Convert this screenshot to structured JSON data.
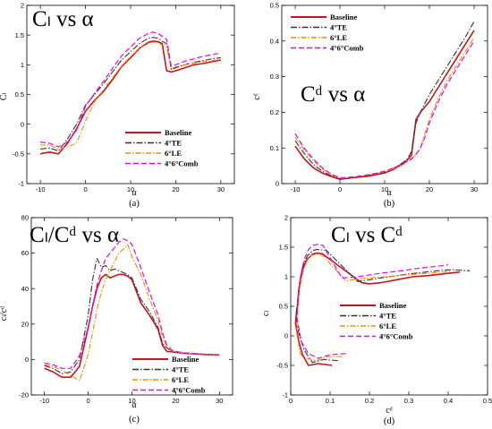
{
  "series_styles": [
    {
      "name": "Baseline",
      "color": "#c8141e",
      "dash": "",
      "width": 1.6
    },
    {
      "name": "4°TE",
      "color": "#333333",
      "dash": "7,2,1.5,2",
      "width": 1.1
    },
    {
      "name": "6°LE",
      "color": "#ff8800",
      "dash": "6,2,1.5,2",
      "width": 1.1
    },
    {
      "name": "4°6°Comb",
      "color": "#ee00ee",
      "dash": "6,3",
      "width": 1.2
    }
  ],
  "chart_data": [
    {
      "type": "line",
      "title": "Cₗ vs α",
      "xlabel": "α",
      "ylabel": "Cₗ",
      "caption": "(a)",
      "xlim": [
        -13,
        33
      ],
      "ylim": [
        -1,
        2
      ],
      "xticks": [
        -10,
        0,
        10,
        20,
        30
      ],
      "yticks": [
        -1,
        -0.5,
        0,
        0.5,
        1,
        1.5,
        2
      ],
      "xtick_labels": [
        "-10",
        "0",
        "10",
        "20",
        "30"
      ],
      "ytick_labels": [
        "-1",
        "-0.5",
        "0",
        "0.5",
        "1",
        "1.5",
        "2"
      ],
      "legend_position": "lower-right",
      "series": [
        {
          "name": "Baseline",
          "x": [
            -10,
            -8,
            -6,
            -4,
            -2,
            0,
            2,
            4,
            6,
            8,
            10,
            12,
            14,
            15,
            16,
            17,
            18,
            19,
            20,
            22,
            24,
            26,
            28,
            30
          ],
          "y": [
            -0.5,
            -0.47,
            -0.5,
            -0.32,
            -0.08,
            0.22,
            0.4,
            0.55,
            0.75,
            0.97,
            1.12,
            1.28,
            1.38,
            1.4,
            1.39,
            1.36,
            0.9,
            0.88,
            0.9,
            0.95,
            1.0,
            1.02,
            1.05,
            1.08
          ]
        },
        {
          "name": "4°TE",
          "x": [
            -10,
            -8,
            -6,
            -4,
            -2,
            0,
            2,
            4,
            6,
            8,
            10,
            12,
            14,
            15,
            16,
            17,
            18,
            19,
            20,
            22,
            24,
            26,
            28,
            30
          ],
          "y": [
            -0.42,
            -0.4,
            -0.45,
            -0.25,
            0.0,
            0.32,
            0.5,
            0.68,
            0.88,
            1.08,
            1.22,
            1.36,
            1.45,
            1.46,
            1.45,
            1.4,
            1.35,
            0.92,
            0.95,
            1.0,
            1.04,
            1.07,
            1.1,
            1.12
          ]
        },
        {
          "name": "6°LE",
          "x": [
            -10,
            -8,
            -6,
            -4,
            -2,
            0,
            2,
            4,
            6,
            8,
            10,
            12,
            14,
            15,
            16,
            17,
            18,
            19,
            20,
            22,
            24,
            26,
            28,
            30
          ],
          "y": [
            -0.35,
            -0.35,
            -0.42,
            -0.38,
            -0.32,
            0.05,
            0.38,
            0.58,
            0.78,
            0.98,
            1.14,
            1.28,
            1.36,
            1.38,
            1.37,
            1.33,
            1.3,
            0.93,
            0.97,
            1.0,
            1.03,
            1.05,
            1.07,
            1.09
          ]
        },
        {
          "name": "4°6°Comb",
          "x": [
            -10,
            -8,
            -6,
            -4,
            -2,
            0,
            2,
            4,
            6,
            8,
            10,
            12,
            14,
            15,
            16,
            17,
            18,
            19,
            20,
            22,
            24,
            26,
            28,
            30
          ],
          "y": [
            -0.3,
            -0.32,
            -0.38,
            -0.3,
            -0.1,
            0.3,
            0.52,
            0.72,
            0.94,
            1.15,
            1.3,
            1.45,
            1.53,
            1.55,
            1.53,
            1.48,
            1.43,
            0.98,
            1.0,
            1.06,
            1.1,
            1.14,
            1.17,
            1.2
          ]
        }
      ]
    },
    {
      "type": "line",
      "title": "Cᵈ vs α",
      "xlabel": "α",
      "ylabel": "cᵈ",
      "caption": "(b)",
      "xlim": [
        -13,
        33
      ],
      "ylim": [
        0,
        0.5
      ],
      "xticks": [
        -10,
        0,
        10,
        20,
        30
      ],
      "yticks": [
        0,
        0.1,
        0.2,
        0.3,
        0.4,
        0.5
      ],
      "xtick_labels": [
        "-10",
        "0",
        "10",
        "20",
        "30"
      ],
      "ytick_labels": [
        "0",
        "0.1",
        "0.2",
        "0.3",
        "0.4",
        "0.5"
      ],
      "legend_position": "top-left",
      "series": [
        {
          "name": "Baseline",
          "x": [
            -10,
            -8,
            -6,
            -4,
            -2,
            0,
            2,
            4,
            6,
            8,
            10,
            12,
            14,
            15,
            16,
            17,
            18,
            20,
            22,
            24,
            26,
            28,
            30
          ],
          "y": [
            0.105,
            0.07,
            0.045,
            0.03,
            0.02,
            0.012,
            0.015,
            0.018,
            0.02,
            0.025,
            0.03,
            0.04,
            0.055,
            0.065,
            0.08,
            0.18,
            0.2,
            0.23,
            0.27,
            0.31,
            0.35,
            0.39,
            0.43
          ]
        },
        {
          "name": "4°TE",
          "x": [
            -10,
            -8,
            -6,
            -4,
            -2,
            0,
            2,
            4,
            6,
            8,
            10,
            12,
            14,
            15,
            16,
            17,
            18,
            20,
            22,
            24,
            26,
            28,
            30
          ],
          "y": [
            0.12,
            0.085,
            0.055,
            0.035,
            0.022,
            0.013,
            0.016,
            0.019,
            0.022,
            0.027,
            0.033,
            0.043,
            0.058,
            0.068,
            0.09,
            0.17,
            0.2,
            0.25,
            0.29,
            0.33,
            0.37,
            0.41,
            0.455
          ]
        },
        {
          "name": "6°LE",
          "x": [
            -10,
            -8,
            -6,
            -4,
            -2,
            0,
            2,
            4,
            6,
            8,
            10,
            12,
            14,
            16,
            17,
            18,
            19,
            20,
            22,
            24,
            26,
            28,
            30
          ],
          "y": [
            0.13,
            0.095,
            0.065,
            0.042,
            0.025,
            0.015,
            0.017,
            0.02,
            0.023,
            0.028,
            0.034,
            0.042,
            0.052,
            0.068,
            0.08,
            0.1,
            0.14,
            0.18,
            0.24,
            0.29,
            0.33,
            0.37,
            0.41
          ]
        },
        {
          "name": "4°6°Comb",
          "x": [
            -10,
            -8,
            -6,
            -4,
            -2,
            0,
            2,
            4,
            6,
            8,
            10,
            12,
            14,
            16,
            17,
            18,
            19,
            20,
            22,
            24,
            26,
            28,
            30
          ],
          "y": [
            0.14,
            0.1,
            0.07,
            0.045,
            0.027,
            0.016,
            0.018,
            0.02,
            0.024,
            0.029,
            0.035,
            0.044,
            0.055,
            0.07,
            0.082,
            0.1,
            0.13,
            0.17,
            0.23,
            0.28,
            0.32,
            0.36,
            0.4
          ]
        }
      ]
    },
    {
      "type": "line",
      "title": "Cₗ/Cᵈ vs α",
      "xlabel": "α",
      "ylabel": "cₗ/cᵈ",
      "caption": "(c)",
      "xlim": [
        -13,
        33
      ],
      "ylim": [
        -20,
        80
      ],
      "xticks": [
        -10,
        0,
        10,
        20,
        30
      ],
      "yticks": [
        -20,
        0,
        20,
        40,
        60,
        80
      ],
      "xtick_labels": [
        "-10",
        "0",
        "10",
        "20",
        "30"
      ],
      "ytick_labels": [
        "-20",
        "0",
        "20",
        "40",
        "60",
        "80"
      ],
      "legend_position": "lower-right",
      "series": [
        {
          "name": "Baseline",
          "x": [
            -10,
            -8,
            -6,
            -4,
            -2,
            0,
            1,
            2,
            3,
            4,
            5,
            6,
            7,
            8,
            9,
            10,
            12,
            14,
            16,
            17,
            18,
            19,
            20,
            22,
            24,
            26,
            28,
            30
          ],
          "y": [
            -5,
            -7,
            -10,
            -10,
            -4,
            18,
            30,
            40,
            46,
            48,
            46,
            47,
            48,
            48,
            47,
            45,
            32,
            25,
            17,
            8,
            4.5,
            4.4,
            4,
            3.5,
            3.2,
            2.9,
            2.7,
            2.5
          ]
        },
        {
          "name": "4°TE",
          "x": [
            -10,
            -8,
            -6,
            -4,
            -2,
            0,
            1,
            2,
            3,
            4,
            5,
            6,
            7,
            8,
            9,
            10,
            12,
            14,
            16,
            17,
            18,
            19,
            20,
            22,
            24,
            26,
            28,
            30
          ],
          "y": [
            -3.5,
            -5,
            -8,
            -7,
            0,
            25,
            45,
            57,
            52,
            53,
            50,
            51,
            50,
            49,
            48,
            46,
            34,
            27,
            18,
            9,
            6.5,
            4.6,
            4.1,
            3.6,
            3.3,
            3,
            2.8,
            2.6
          ]
        },
        {
          "name": "6°LE",
          "x": [
            -10,
            -8,
            -6,
            -4,
            -2,
            0,
            1,
            2,
            3,
            4,
            5,
            6,
            7,
            8,
            9,
            10,
            12,
            14,
            16,
            17,
            18,
            19,
            20,
            22,
            24,
            26,
            28,
            30
          ],
          "y": [
            -3,
            -4,
            -6,
            -9,
            -12,
            3,
            15,
            28,
            38,
            45,
            50,
            55,
            60,
            62,
            65,
            58,
            48,
            34,
            22,
            13,
            7,
            5,
            4.3,
            3.7,
            3.3,
            3,
            2.8,
            2.6
          ]
        },
        {
          "name": "4°6°Comb",
          "x": [
            -10,
            -8,
            -6,
            -4,
            -2,
            0,
            1,
            2,
            3,
            4,
            5,
            6,
            7,
            8,
            9,
            10,
            12,
            14,
            16,
            17,
            18,
            19,
            20,
            22,
            24,
            26,
            28,
            30
          ],
          "y": [
            -2,
            -3,
            -5,
            -5,
            2,
            18,
            30,
            42,
            50,
            57,
            60,
            63,
            66,
            68,
            67,
            65,
            52,
            38,
            25,
            15,
            8,
            5.5,
            4.5,
            3.8,
            3.4,
            3.1,
            2.9,
            2.7
          ]
        }
      ]
    },
    {
      "type": "line",
      "title": "Cₗ vs Cᵈ",
      "xlabel": "cᵈ",
      "ylabel": "cₗ",
      "caption": "(d)",
      "xlim": [
        0,
        0.5
      ],
      "ylim": [
        -1,
        2
      ],
      "xticks": [
        0,
        0.1,
        0.2,
        0.3,
        0.4,
        0.5
      ],
      "yticks": [
        -1,
        -0.5,
        0,
        0.5,
        1,
        1.5,
        2
      ],
      "xtick_labels": [
        "0",
        "0.1",
        "0.2",
        "0.3",
        "0.4",
        "0.5"
      ],
      "ytick_labels": [
        "-1",
        "-0.5",
        "0",
        "0.5",
        "1",
        "1.5",
        "2"
      ],
      "legend_position": "lower-right",
      "series": [
        {
          "name": "Baseline",
          "x": [
            0.105,
            0.07,
            0.045,
            0.03,
            0.02,
            0.012,
            0.015,
            0.018,
            0.02,
            0.025,
            0.03,
            0.04,
            0.055,
            0.065,
            0.08,
            0.18,
            0.2,
            0.23,
            0.27,
            0.31,
            0.35,
            0.39,
            0.43
          ],
          "y": [
            -0.5,
            -0.47,
            -0.5,
            -0.32,
            -0.08,
            0.22,
            0.4,
            0.55,
            0.75,
            0.97,
            1.12,
            1.28,
            1.38,
            1.4,
            1.39,
            0.9,
            0.88,
            0.9,
            0.95,
            1.0,
            1.02,
            1.05,
            1.08
          ]
        },
        {
          "name": "4°TE",
          "x": [
            0.12,
            0.085,
            0.055,
            0.035,
            0.022,
            0.013,
            0.016,
            0.019,
            0.022,
            0.027,
            0.033,
            0.043,
            0.058,
            0.068,
            0.09,
            0.17,
            0.2,
            0.25,
            0.29,
            0.33,
            0.37,
            0.41,
            0.455
          ],
          "y": [
            -0.42,
            -0.4,
            -0.45,
            -0.25,
            0.0,
            0.32,
            0.5,
            0.68,
            0.88,
            1.08,
            1.22,
            1.36,
            1.45,
            1.46,
            1.45,
            0.92,
            0.95,
            1.0,
            1.04,
            1.07,
            1.1,
            1.12,
            1.1
          ]
        },
        {
          "name": "6°LE",
          "x": [
            0.13,
            0.095,
            0.065,
            0.042,
            0.025,
            0.015,
            0.017,
            0.02,
            0.023,
            0.028,
            0.034,
            0.042,
            0.052,
            0.068,
            0.08,
            0.14,
            0.18,
            0.24,
            0.29,
            0.33,
            0.37,
            0.41
          ],
          "y": [
            -0.35,
            -0.35,
            -0.42,
            -0.38,
            -0.32,
            0.05,
            0.38,
            0.58,
            0.78,
            0.98,
            1.14,
            1.28,
            1.36,
            1.38,
            1.37,
            0.93,
            0.97,
            1.0,
            1.03,
            1.05,
            1.07,
            1.09
          ]
        },
        {
          "name": "4°6°Comb",
          "x": [
            0.14,
            0.1,
            0.07,
            0.045,
            0.027,
            0.016,
            0.018,
            0.02,
            0.024,
            0.029,
            0.035,
            0.044,
            0.055,
            0.07,
            0.082,
            0.13,
            0.17,
            0.23,
            0.28,
            0.32,
            0.36,
            0.4
          ],
          "y": [
            -0.3,
            -0.32,
            -0.38,
            -0.3,
            -0.1,
            0.3,
            0.52,
            0.72,
            0.94,
            1.15,
            1.3,
            1.45,
            1.53,
            1.55,
            1.53,
            0.98,
            1.0,
            1.06,
            1.1,
            1.14,
            1.17,
            1.2
          ]
        }
      ]
    }
  ]
}
